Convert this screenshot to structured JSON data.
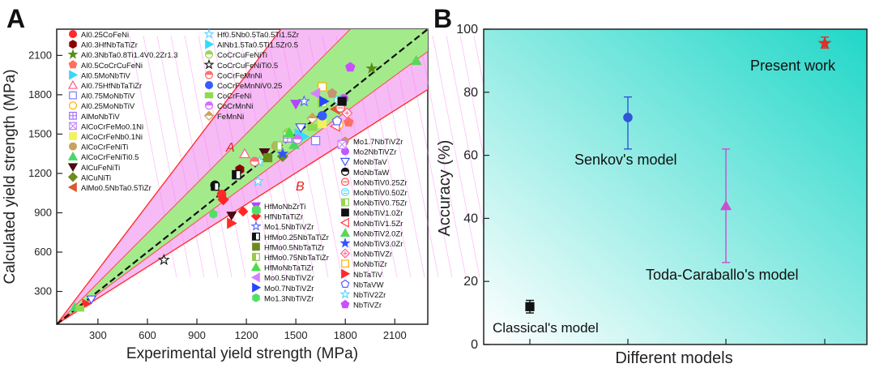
{
  "figure": {
    "panels": [
      "A",
      "B"
    ]
  },
  "chart_data": [
    {
      "panel": "A",
      "type": "scatter",
      "xlabel": "Experimental yield strength (MPa)",
      "ylabel": "Calculated yield strength (MPa)",
      "xticks": [
        300,
        600,
        900,
        1200,
        1500,
        1800,
        2100
      ],
      "yticks": [
        300,
        600,
        900,
        1200,
        1500,
        1800,
        2100
      ],
      "xlim": [
        50,
        2300
      ],
      "ylim": [
        50,
        2300
      ],
      "grid": false,
      "legend_position": "inside-left-and-right-columns",
      "region_labels": [
        "A",
        "B"
      ],
      "colors": {
        "outer_band": "#f3a4f2",
        "inner_band": "#9af080",
        "boundary": "#ff3030",
        "diagonal": "#111111"
      },
      "series": [
        {
          "name": "Al0.25CoFeNi",
          "marker": "circle-filled",
          "color": "#ff2a2a",
          "points": [
            [
              1050,
              1040
            ]
          ]
        },
        {
          "name": "Al0.3HfNbTaTiZr",
          "marker": "hexagon-filled",
          "color": "#8b0000",
          "points": [
            [
              1160,
              1230
            ]
          ]
        },
        {
          "name": "Al0.3NbTa0.8Ti1.4V0.2Zr1.3",
          "marker": "star-filled",
          "color": "#5b8c1a",
          "points": [
            [
              1960,
              2000
            ]
          ]
        },
        {
          "name": "Al0.5CoCrCuFeNi",
          "marker": "pentagon-filled",
          "color": "#ff6f61",
          "points": [
            [
              1820,
              1590
            ]
          ]
        },
        {
          "name": "Al0.5MoNbTiV",
          "marker": "triangle-right-filled",
          "color": "#39d6ff",
          "points": [
            [
              1520,
              1500
            ]
          ]
        },
        {
          "name": "Al0.75HfNbTaTiZr",
          "marker": "triangle-up-open",
          "color": "#ff5c8a",
          "points": [
            [
              1190,
              1350
            ]
          ]
        },
        {
          "name": "Al0.75MoNbTiV",
          "marker": "square-open",
          "color": "#7b7cff",
          "points": [
            [
              1620,
              1450
            ]
          ]
        },
        {
          "name": "Al0.25MoNbTiV",
          "marker": "circle-open",
          "color": "#ffb300",
          "points": [
            [
              1760,
              1570
            ]
          ]
        },
        {
          "name": "AlMoNbTiV",
          "marker": "square-grid",
          "color": "#9c6cff",
          "points": [
            [
              1450,
              1470
            ]
          ]
        },
        {
          "name": "AlCoCrFeMo0.1Ni",
          "marker": "square-x",
          "color": "#c77dff",
          "points": [
            [
              1780,
              1420
            ]
          ]
        },
        {
          "name": "AlCoCrFeNb0.1Ni",
          "marker": "square-filled",
          "color": "#f1f15c",
          "points": [
            [
              1660,
              1580
            ]
          ]
        },
        {
          "name": "AlCoCrFeNiTi",
          "marker": "circle-filled",
          "color": "#c8a25e",
          "points": [
            [
              1380,
              1410
            ]
          ]
        },
        {
          "name": "AlCoCrFeNiTi0.5",
          "marker": "triangle-up-filled",
          "color": "#49d867",
          "points": [
            [
              1490,
              1420
            ]
          ]
        },
        {
          "name": "AlCuFeNiTi",
          "marker": "triangle-down-filled",
          "color": "#4b0a16",
          "points": [
            [
              1310,
              1360
            ]
          ]
        },
        {
          "name": "AlCuNiTi",
          "marker": "diamond-filled",
          "color": "#6c8b1f",
          "points": [
            [
              1420,
              1330
            ]
          ]
        },
        {
          "name": "AlMo0.5NbTa0.5TiZr",
          "marker": "triangle-left-filled",
          "color": "#d85a30",
          "points": [
            [
              1740,
              1690
            ]
          ]
        },
        {
          "name": "Hf0.5Nb0.5Ta0.5Ti1.5Zr",
          "marker": "star-open",
          "color": "#57d6ff",
          "points": [
            [
              1280,
              1290
            ]
          ]
        },
        {
          "name": "AlNb1.5Ta0.5Ti1.5Zr0.5",
          "marker": "triangle-right-filled",
          "color": "#35dbff",
          "points": [
            [
              1550,
              1480
            ]
          ]
        },
        {
          "name": "CoCrCuFeNiTi",
          "marker": "circle-half",
          "color": "#9dd55b",
          "points": [
            [
              1450,
              1510
            ]
          ]
        },
        {
          "name": "CoCrCuFeNiTi0.5",
          "marker": "star-open",
          "color": "#111111",
          "points": [
            [
              700,
              540
            ]
          ]
        },
        {
          "name": "CoCrFeMnNi",
          "marker": "circle-half",
          "color": "#ff7070",
          "points": [
            [
              1250,
              1290
            ]
          ]
        },
        {
          "name": "CoCrFeMnNiV0.25",
          "marker": "circle-filled",
          "color": "#355cff",
          "points": [
            [
              1660,
              1640
            ]
          ]
        },
        {
          "name": "CoCrFeNi",
          "marker": "rect-filled",
          "color": "#8edb4d",
          "points": [
            [
              1600,
              1550
            ]
          ]
        },
        {
          "name": "CoCrMnNi",
          "marker": "circle-half",
          "color": "#d76cff",
          "points": [
            [
              1510,
              1460
            ]
          ]
        },
        {
          "name": "FeMnNi",
          "marker": "diamond-half",
          "color": "#d0a15c",
          "points": [
            [
              1600,
              1620
            ]
          ]
        },
        {
          "name": "Mo1.7NbTiVZr",
          "marker": "pentagon-filled",
          "color": "#c59472",
          "points": [
            [
              1720,
              1810
            ]
          ]
        },
        {
          "name": "Mo2NbTiVZr",
          "marker": "circle-filled",
          "color": "#c158ff",
          "points": [
            [
              1790,
              1770
            ]
          ]
        },
        {
          "name": "MoNbTaV",
          "marker": "triangle-down-open",
          "color": "#3c54ff",
          "points": [
            [
              1530,
              1550
            ]
          ]
        },
        {
          "name": "MoNbTaW",
          "marker": "circle-half-dark",
          "color": "#111111",
          "points": [
            [
              1010,
              1110
            ]
          ]
        },
        {
          "name": "MoNbTiV0.25Zr",
          "marker": "circle-line",
          "color": "#ff5050",
          "points": [
            [
              1770,
              1700
            ]
          ]
        },
        {
          "name": "MoNbTiV0.50Zr",
          "marker": "circle-dashed",
          "color": "#55d5ff",
          "points": [
            [
              1760,
              1760
            ]
          ]
        },
        {
          "name": "MoNbTiV0.75Zr",
          "marker": "square-half",
          "color": "#93d94a",
          "points": [
            [
              1660,
              1740
            ]
          ]
        },
        {
          "name": "MoNbTiV1.0Zr",
          "marker": "square-filled",
          "color": "#111111",
          "points": [
            [
              1780,
              1750
            ]
          ]
        },
        {
          "name": "MoNbTiV1.5Zr",
          "marker": "triangle-left-open",
          "color": "#ff3d3d",
          "points": [
            [
              1740,
              1560
            ]
          ]
        },
        {
          "name": "MoNbTiV2.0Zr",
          "marker": "triangle-up-filled",
          "color": "#5ad85a",
          "points": [
            [
              2230,
              2060
            ]
          ]
        },
        {
          "name": "MoNbTiV3.0Zr",
          "marker": "star-filled",
          "color": "#3152ff",
          "points": [
            [
              1420,
              1350
            ]
          ]
        },
        {
          "name": "MoNbTiVZr",
          "marker": "diamond-open",
          "color": "#ff5a8b",
          "points": [
            [
              1810,
              1660
            ]
          ]
        },
        {
          "name": "MoNbTiZr",
          "marker": "square-open",
          "color": "#ffb000",
          "points": [
            [
              1660,
              1860
            ]
          ]
        },
        {
          "name": "NbTaTiV",
          "marker": "triangle-right-filled",
          "color": "#ff2a2a",
          "points": [
            [
              1110,
              820
            ]
          ]
        },
        {
          "name": "NbTaVW",
          "marker": "pentagon-open",
          "color": "#5b5cff",
          "points": [
            [
              1750,
              1600
            ]
          ]
        },
        {
          "name": "NbTiV2Zr",
          "marker": "star-open",
          "color": "#55d5ff",
          "points": [
            [
              1270,
              1140
            ]
          ]
        },
        {
          "name": "NbTiVZr",
          "marker": "pentagon-filled",
          "color": "#c94fff",
          "points": [
            [
              1830,
              2010
            ]
          ]
        },
        {
          "name": "HfMoNbZrTi",
          "marker": "triangle-down-filled",
          "color": "#b544ff",
          "points": [
            [
              1500,
              1730
            ]
          ]
        },
        {
          "name": "HfNbTaTiZr",
          "marker": "diamond-filled",
          "color": "#ff2525",
          "points": [
            [
              1060,
              1000
            ]
          ]
        },
        {
          "name": "Mo1.5NbTiVZr",
          "marker": "star-open",
          "color": "#4f63ff",
          "points": [
            [
              1550,
              1750
            ]
          ]
        },
        {
          "name": "HfMo0.25NbTaTiZr",
          "marker": "square-half-dark",
          "color": "#111111",
          "points": [
            [
              1140,
              1190
            ]
          ]
        },
        {
          "name": "HfMo0.5NbTaTiZr",
          "marker": "square-filled",
          "color": "#6c8b1f",
          "points": [
            [
              1330,
              1320
            ]
          ]
        },
        {
          "name": "HfMo0.75NbTaTiZr",
          "marker": "square-half",
          "color": "#98c94f",
          "points": [
            [
              1390,
              1410
            ]
          ]
        },
        {
          "name": "HfMoNbTaTiZr",
          "marker": "triangle-up-filled",
          "color": "#46e049",
          "points": [
            [
              1460,
              1510
            ]
          ]
        },
        {
          "name": "Mo0.5NbTiVZr",
          "marker": "triangle-left-filled",
          "color": "#d780ff",
          "points": [
            [
              1620,
              1810
            ]
          ]
        },
        {
          "name": "Mo0.7NbTiVZr",
          "marker": "triangle-right-filled",
          "color": "#2a45ff",
          "points": [
            [
              1670,
              1750
            ]
          ]
        },
        {
          "name": "Mo1.3NbTiVZr",
          "marker": "hexagon-filled",
          "color": "#53df67",
          "points": [
            [
              1260,
              920
            ]
          ]
        }
      ],
      "extra_points": [
        {
          "series": "NbTaTiV",
          "x": 230,
          "y": 205
        },
        {
          "series": "MoNbTaV",
          "x": 260,
          "y": 240
        },
        {
          "series": "AlCoCrFeNiTi0.5",
          "x": 160,
          "y": 180
        },
        {
          "series": "CoCrFeNi",
          "x": 190,
          "y": 170
        },
        {
          "series": "AlCuFeNiTi",
          "x": 1110,
          "y": 880
        },
        {
          "series": "HfNbTaTiZr",
          "x": 1180,
          "y": 910
        },
        {
          "series": "Mo1.3NbTiVZr",
          "x": 1000,
          "y": 890
        },
        {
          "series": "HfMo0.25NbTaTiZr",
          "x": 1010,
          "y": 1100
        }
      ]
    },
    {
      "panel": "B",
      "type": "scatter",
      "xlabel": "Different models",
      "ylabel": "Accuracy (%)",
      "yticks": [
        0,
        20,
        40,
        60,
        80,
        100
      ],
      "ylim": [
        0,
        100
      ],
      "grid": false,
      "background_gradient": [
        "#ffffff",
        "#20d7c8"
      ],
      "models": [
        {
          "name": "Classical's model",
          "value": 12,
          "error": [
            10,
            14
          ],
          "color": "#111111",
          "marker": "square"
        },
        {
          "name": "Senkov's model",
          "value": 72,
          "error": [
            62,
            78.5
          ],
          "color": "#3156d6",
          "marker": "circle"
        },
        {
          "name": "Toda-Caraballo's model",
          "value": 44,
          "error": [
            26,
            62
          ],
          "color": "#c94fd1",
          "marker": "triangle-up"
        },
        {
          "name": "Present work",
          "value": 95.5,
          "error": [
            94,
            97.5
          ],
          "color": "#d7332f",
          "marker": "star"
        }
      ]
    }
  ]
}
